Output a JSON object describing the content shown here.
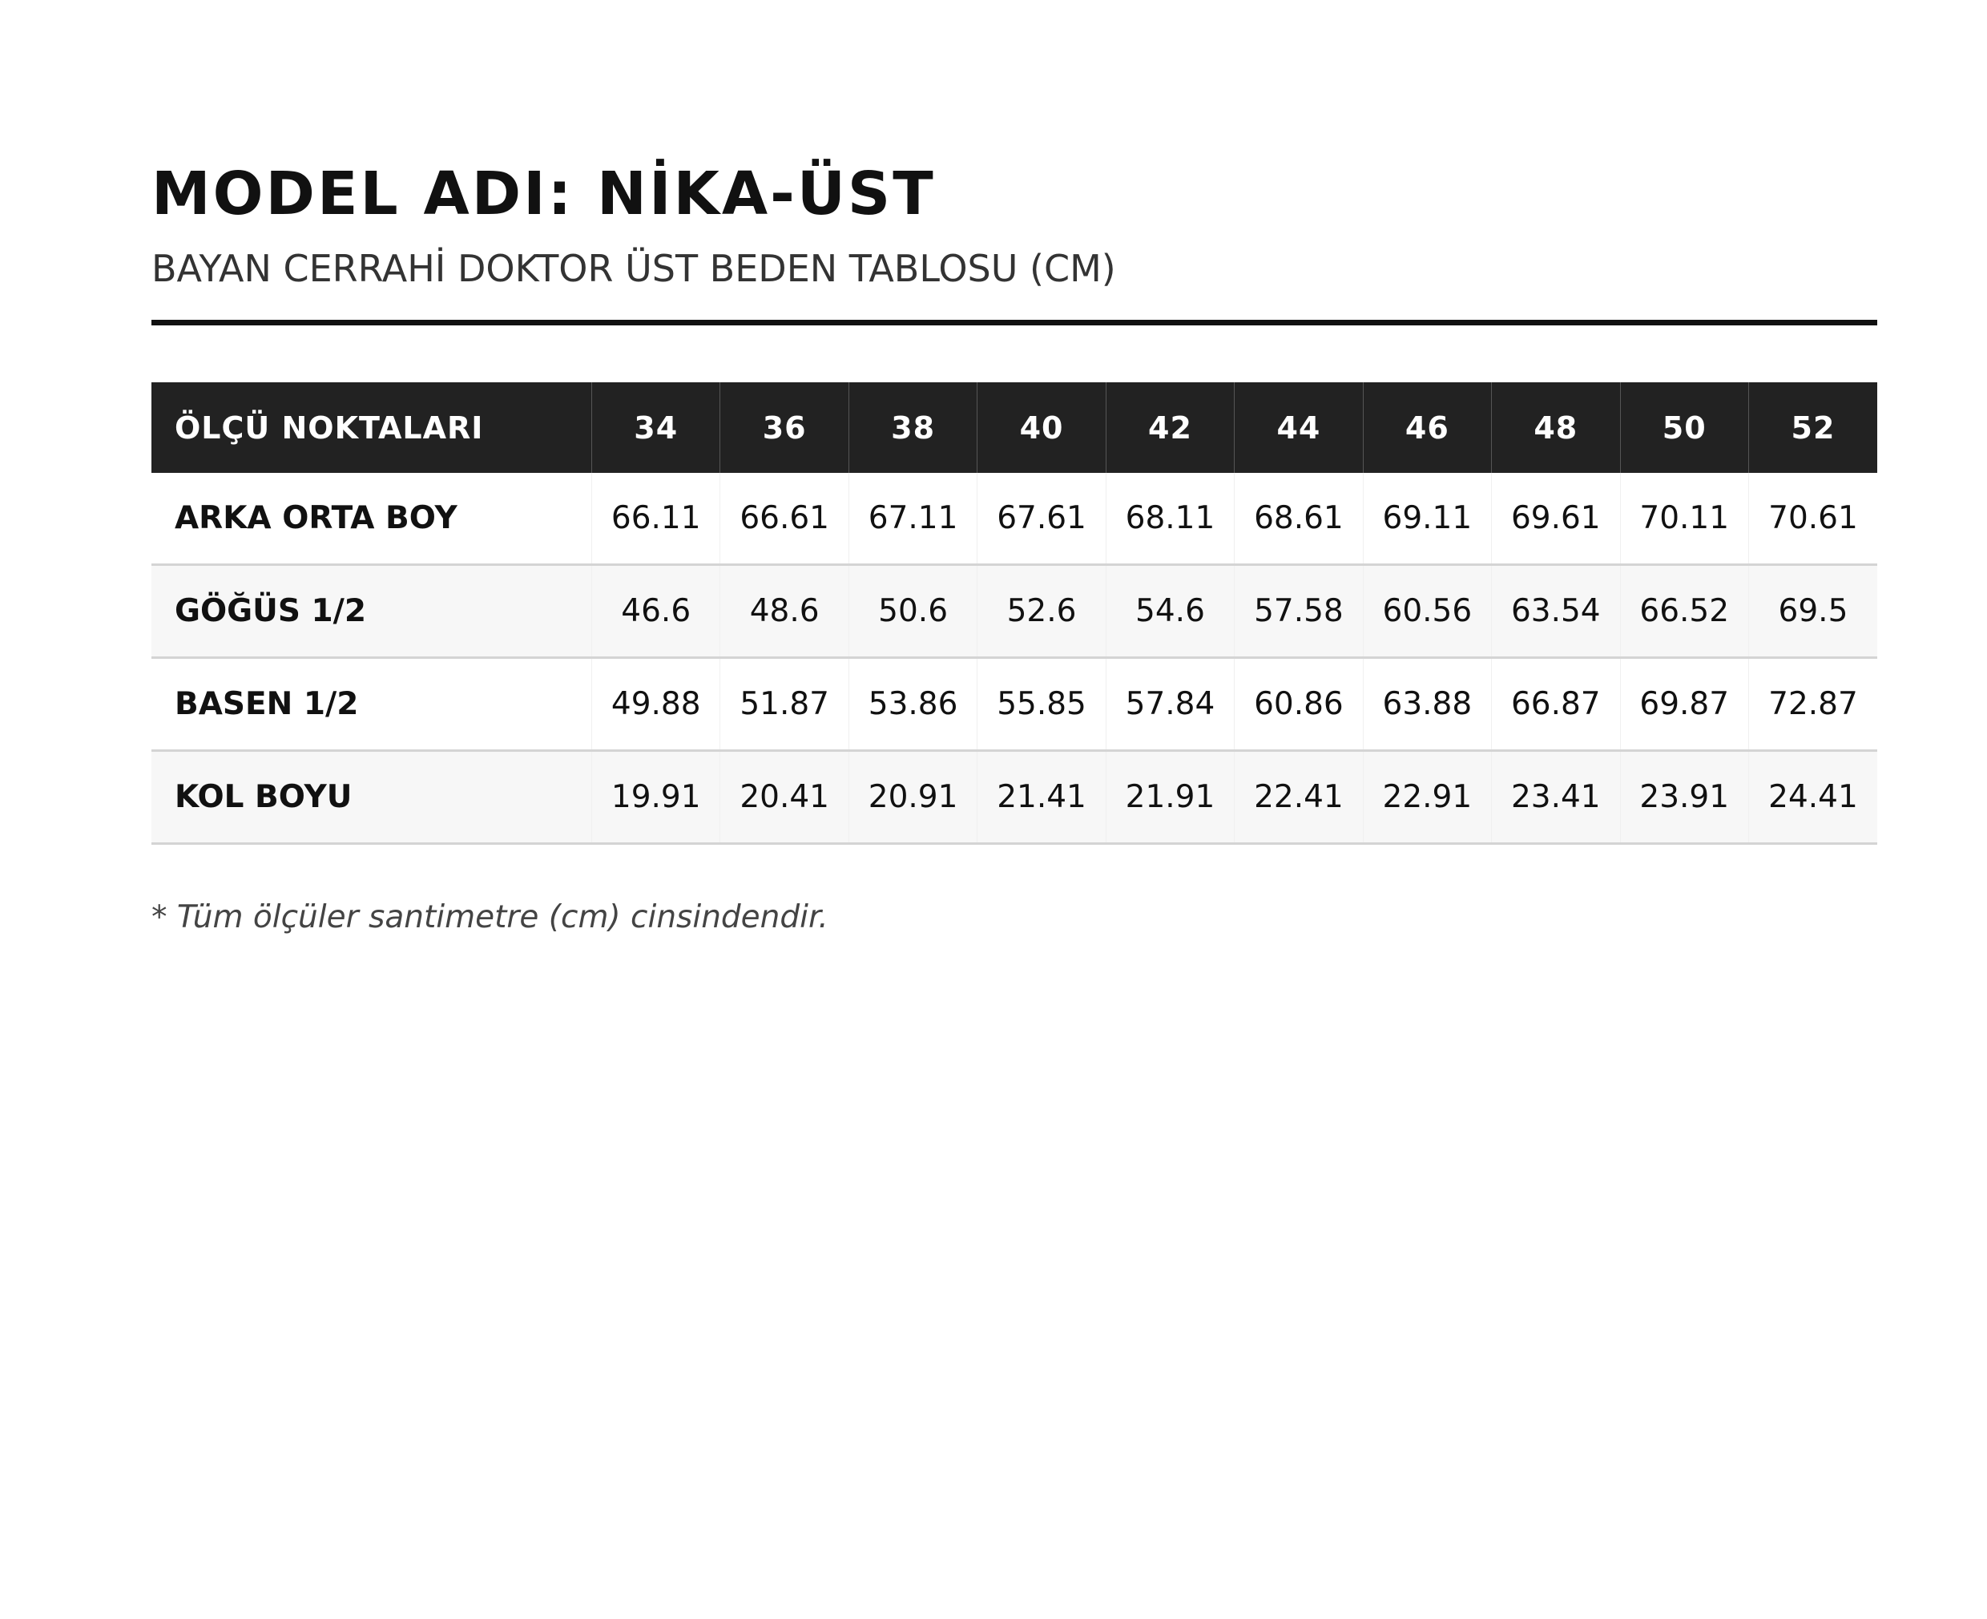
{
  "header": {
    "title": "MODEL ADI: NİKA-ÜST",
    "subtitle": "BAYAN CERRAHİ DOKTOR ÜST BEDEN TABLOSU (CM)"
  },
  "table": {
    "columns": [
      "ÖLÇÜ NOKTALARI",
      "34",
      "36",
      "38",
      "40",
      "42",
      "44",
      "46",
      "48",
      "50",
      "52"
    ],
    "rows": [
      [
        "ARKA ORTA BOY",
        "66.11",
        "66.61",
        "67.11",
        "67.61",
        "68.11",
        "68.61",
        "69.11",
        "69.61",
        "70.11",
        "70.61"
      ],
      [
        "GÖĞÜS 1/2",
        "46.6",
        "48.6",
        "50.6",
        "52.6",
        "54.6",
        "57.58",
        "60.56",
        "63.54",
        "66.52",
        "69.5"
      ],
      [
        "BASEN 1/2",
        "49.88",
        "51.87",
        "53.86",
        "55.85",
        "57.84",
        "60.86",
        "63.88",
        "66.87",
        "69.87",
        "72.87"
      ],
      [
        "KOL BOYU",
        "19.91",
        "20.41",
        "20.91",
        "21.41",
        "21.91",
        "22.41",
        "22.91",
        "23.41",
        "23.91",
        "24.41"
      ]
    ]
  },
  "footnote": "* Tüm ölçüler santimetre (cm) cinsindendir."
}
